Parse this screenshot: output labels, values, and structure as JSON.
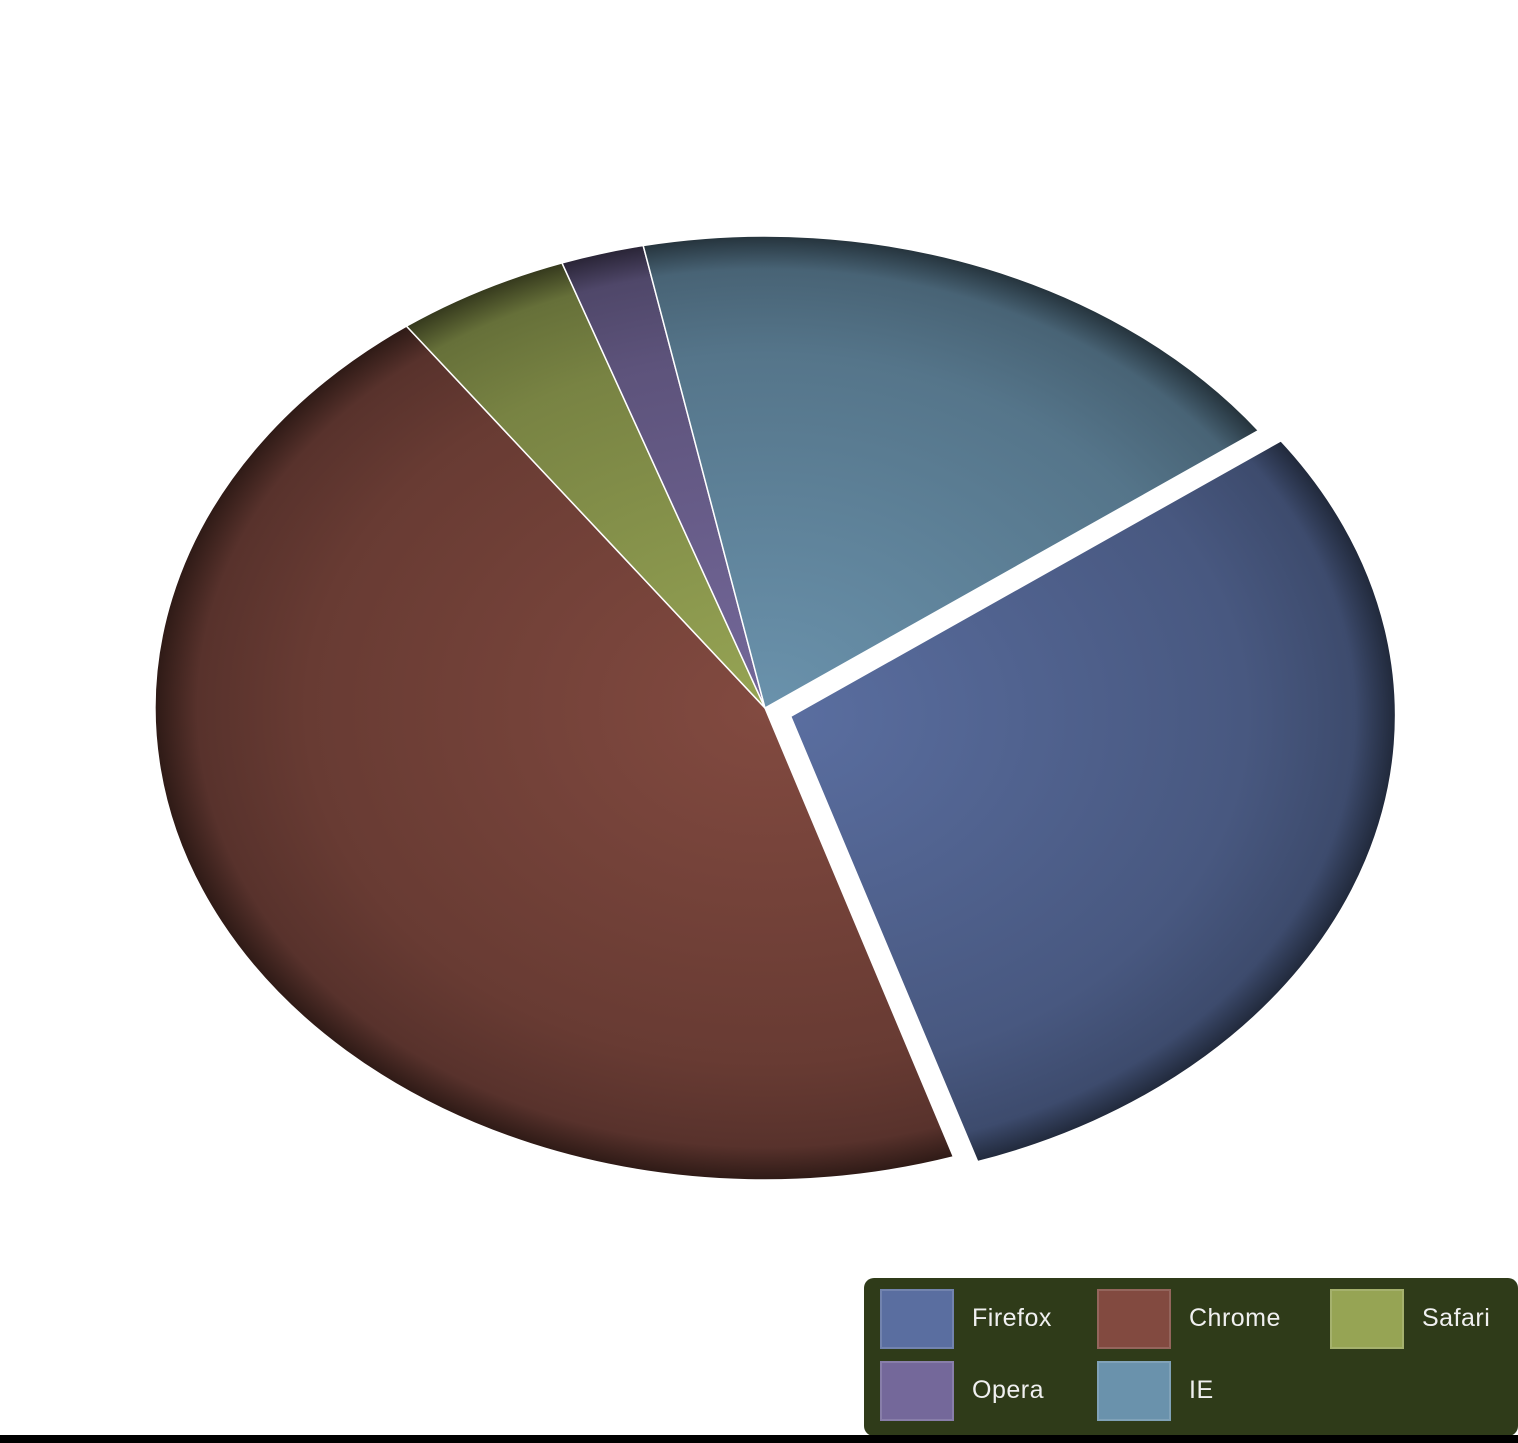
{
  "chart_data": {
    "type": "pie",
    "title": "",
    "legend_position": "bottom-right",
    "exploded": "Firefox",
    "slices": [
      {
        "key": "firefox",
        "label": "Firefox",
        "value": 30,
        "color": "#5a6ea0"
      },
      {
        "key": "chrome",
        "label": "Chrome",
        "value": 45,
        "color": "#824a40"
      },
      {
        "key": "safari",
        "label": "Safari",
        "value": 4.6,
        "color": "#96a454"
      },
      {
        "key": "opera",
        "label": "Opera",
        "value": 2.2,
        "color": "#74689a"
      },
      {
        "key": "ie",
        "label": "IE",
        "value": 18.2,
        "color": "#6a92ac"
      }
    ]
  },
  "legend": {
    "background": "#2f3b19",
    "items": [
      "Firefox",
      "Chrome",
      "Safari",
      "Opera",
      "IE"
    ]
  }
}
